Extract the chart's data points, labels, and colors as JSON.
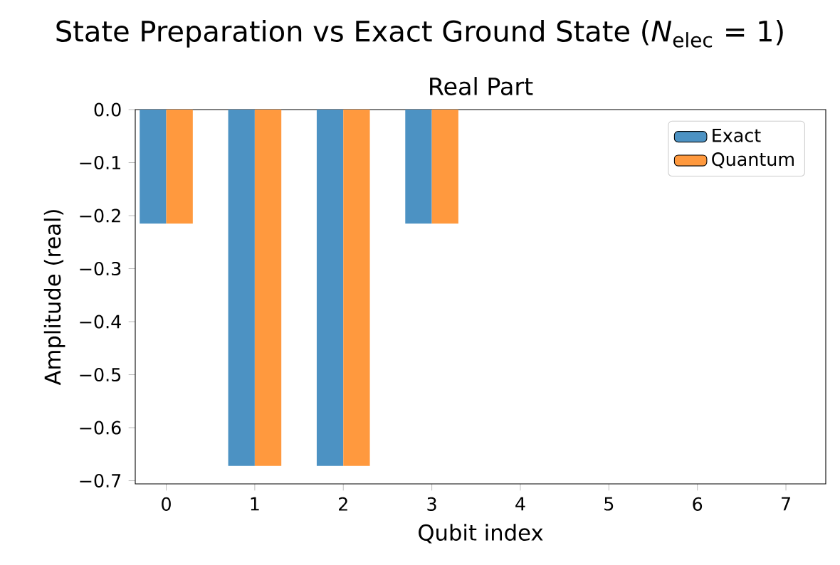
{
  "chart_data": {
    "type": "bar",
    "title": "State Preparation vs Exact Ground State (*N*$_{elec}$ = 1)",
    "subtitle": "Real Part",
    "xlabel": "Qubit index",
    "ylabel": "Amplitude (real)",
    "categories": [
      "0",
      "1",
      "2",
      "3",
      "4",
      "5",
      "6",
      "7"
    ],
    "series": [
      {
        "name": "Exact",
        "color": "#4c92c3",
        "values": [
          -0.215,
          -0.672,
          -0.672,
          -0.215,
          0,
          0,
          0,
          0
        ]
      },
      {
        "name": "Quantum",
        "color": "#ff993e",
        "values": [
          -0.215,
          -0.672,
          -0.672,
          -0.215,
          0,
          0,
          0,
          0
        ]
      }
    ],
    "ylim": [
      -0.706,
      0
    ],
    "yticks": [
      {
        "value": 0,
        "label": "0.0"
      },
      {
        "value": -0.1,
        "label": "−0.1"
      },
      {
        "value": -0.2,
        "label": "−0.2"
      },
      {
        "value": -0.3,
        "label": "−0.3"
      },
      {
        "value": -0.4,
        "label": "−0.4"
      },
      {
        "value": -0.5,
        "label": "−0.5"
      },
      {
        "value": -0.6,
        "label": "−0.6"
      },
      {
        "value": -0.7,
        "label": "−0.7"
      }
    ],
    "legend": "top right",
    "grid": false
  }
}
